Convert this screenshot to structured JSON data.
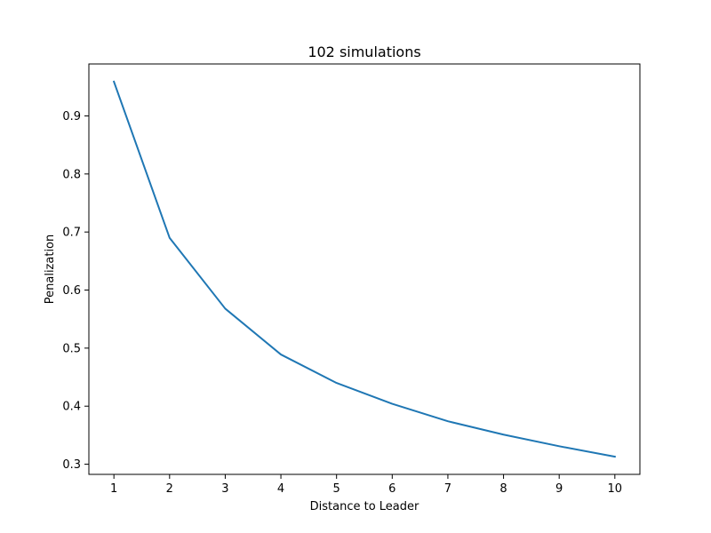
{
  "chart_data": {
    "type": "line",
    "title": "102 simulations",
    "xlabel": "Distance to Leader",
    "ylabel": "Penalization",
    "xlim": [
      0.55,
      10.45
    ],
    "ylim": [
      0.2825,
      0.9895
    ],
    "grid": false,
    "xticks": [
      1,
      2,
      3,
      4,
      5,
      6,
      7,
      8,
      9,
      10
    ],
    "xtick_labels": [
      "1",
      "2",
      "3",
      "4",
      "5",
      "6",
      "7",
      "8",
      "9",
      "10"
    ],
    "yticks": [
      0.3,
      0.4,
      0.5,
      0.6,
      0.7,
      0.8,
      0.9
    ],
    "ytick_labels": [
      "0.3",
      "0.4",
      "0.5",
      "0.6",
      "0.7",
      "0.8",
      "0.9"
    ],
    "series": [
      {
        "color": "#1f77b4",
        "x": [
          1,
          2,
          3,
          4,
          5,
          6,
          7,
          8,
          9,
          10
        ],
        "y": [
          0.959,
          0.69,
          0.568,
          0.489,
          0.44,
          0.404,
          0.374,
          0.351,
          0.331,
          0.313
        ]
      }
    ]
  }
}
